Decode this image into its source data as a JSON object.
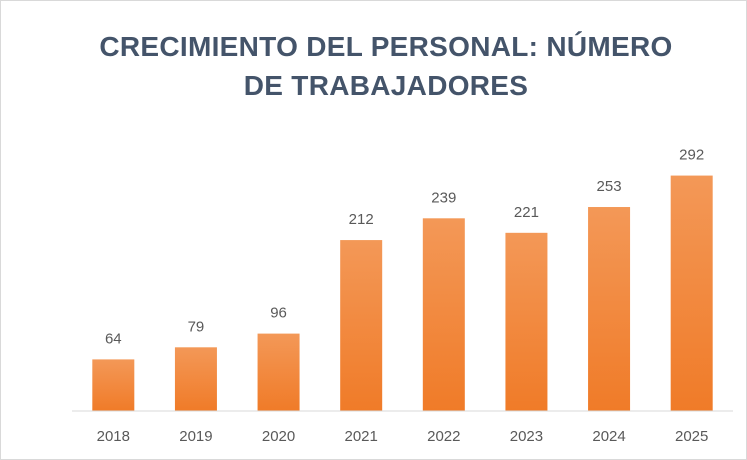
{
  "chart_data": {
    "type": "bar",
    "title": "CRECIMIENTO DEL PERSONAL: NÚMERO DE TRABAJADORES",
    "categories": [
      "2018",
      "2019",
      "2020",
      "2021",
      "2022",
      "2023",
      "2024",
      "2025"
    ],
    "values": [
      64,
      79,
      96,
      212,
      239,
      221,
      253,
      292
    ],
    "color": "#f07b28",
    "ylim": [
      0,
      320
    ]
  }
}
